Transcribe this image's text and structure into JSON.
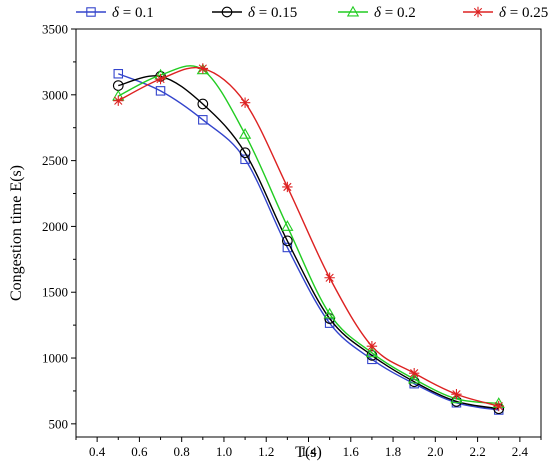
{
  "chart_data": {
    "type": "line",
    "title": "",
    "xlabel": "T(s)",
    "ylabel": "Congestion time E(s)",
    "xlim": [
      0.3,
      2.5
    ],
    "ylim": [
      400,
      3500
    ],
    "xticks": [
      "0.4",
      "0.6",
      "0.8",
      "1.0",
      "1.2",
      "1.4",
      "1.6",
      "1.8",
      "2.0",
      "2.2",
      "2.4"
    ],
    "xtick_values": [
      0.4,
      0.6,
      0.8,
      1.0,
      1.2,
      1.4,
      1.6,
      1.8,
      2.0,
      2.2,
      2.4
    ],
    "yticks": [
      "500",
      "1000",
      "1500",
      "2000",
      "2500",
      "3000",
      "3500"
    ],
    "ytick_values": [
      500,
      1000,
      1500,
      2000,
      2500,
      3000,
      3500
    ],
    "x": [
      0.5,
      0.7,
      0.9,
      1.1,
      1.3,
      1.5,
      1.7,
      1.9,
      2.1,
      2.3
    ],
    "legend_position": "top",
    "grid": false,
    "series": [
      {
        "symbol": "δ",
        "label": " = 0.1",
        "color": "#3344cc",
        "marker": "square",
        "values": [
          3160,
          3030,
          2810,
          2510,
          1840,
          1265,
          990,
          805,
          660,
          605
        ]
      },
      {
        "symbol": "δ",
        "label": " = 0.15",
        "color": "#000000",
        "marker": "circle",
        "values": [
          3070,
          3140,
          2930,
          2560,
          1890,
          1300,
          1020,
          820,
          670,
          615
        ]
      },
      {
        "symbol": "δ",
        "label": " = 0.2",
        "color": "#22cc22",
        "marker": "triangle",
        "values": [
          2990,
          3150,
          3190,
          2700,
          2000,
          1335,
          1040,
          840,
          690,
          655
        ]
      },
      {
        "symbol": "δ",
        "label": " = 0.25",
        "color": "#dd2222",
        "marker": "star",
        "values": [
          2955,
          3120,
          3200,
          2940,
          2300,
          1610,
          1090,
          885,
          725,
          635
        ]
      }
    ]
  }
}
